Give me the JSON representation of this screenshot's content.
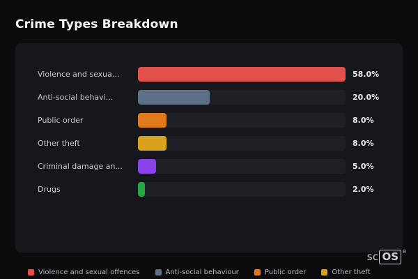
{
  "page": {
    "title": "Crime Types Breakdown"
  },
  "chart_data": {
    "type": "bar",
    "orientation": "horizontal",
    "title": "Crime Types Breakdown",
    "categories": [
      "Violence and sexua...",
      "Anti-social behavi...",
      "Public order",
      "Other theft",
      "Criminal damage an...",
      "Drugs"
    ],
    "values": [
      58.0,
      20.0,
      8.0,
      8.0,
      5.0,
      2.0
    ],
    "value_labels": [
      "58.0%",
      "20.0%",
      "8.0%",
      "8.0%",
      "5.0%",
      "2.0%"
    ],
    "unit": "%",
    "scale_max": 58.0,
    "bar_colors": [
      "#e2504c",
      "#5d7087",
      "#e0791c",
      "#d9a21c",
      "#8b42ea",
      "#27a844"
    ],
    "track_color": "#1f2026",
    "legend_position": "bottom",
    "legend": [
      {
        "label": "Violence and sexual offences",
        "color": "#e2504c"
      },
      {
        "label": "Anti-social behaviour",
        "color": "#5d7087"
      },
      {
        "label": "Public order",
        "color": "#e0791c"
      },
      {
        "label": "Other theft",
        "color": "#d9a21c"
      }
    ]
  },
  "footer": {
    "logo": {
      "prefix": "sc",
      "boxed": "OS",
      "registered": "®"
    }
  }
}
